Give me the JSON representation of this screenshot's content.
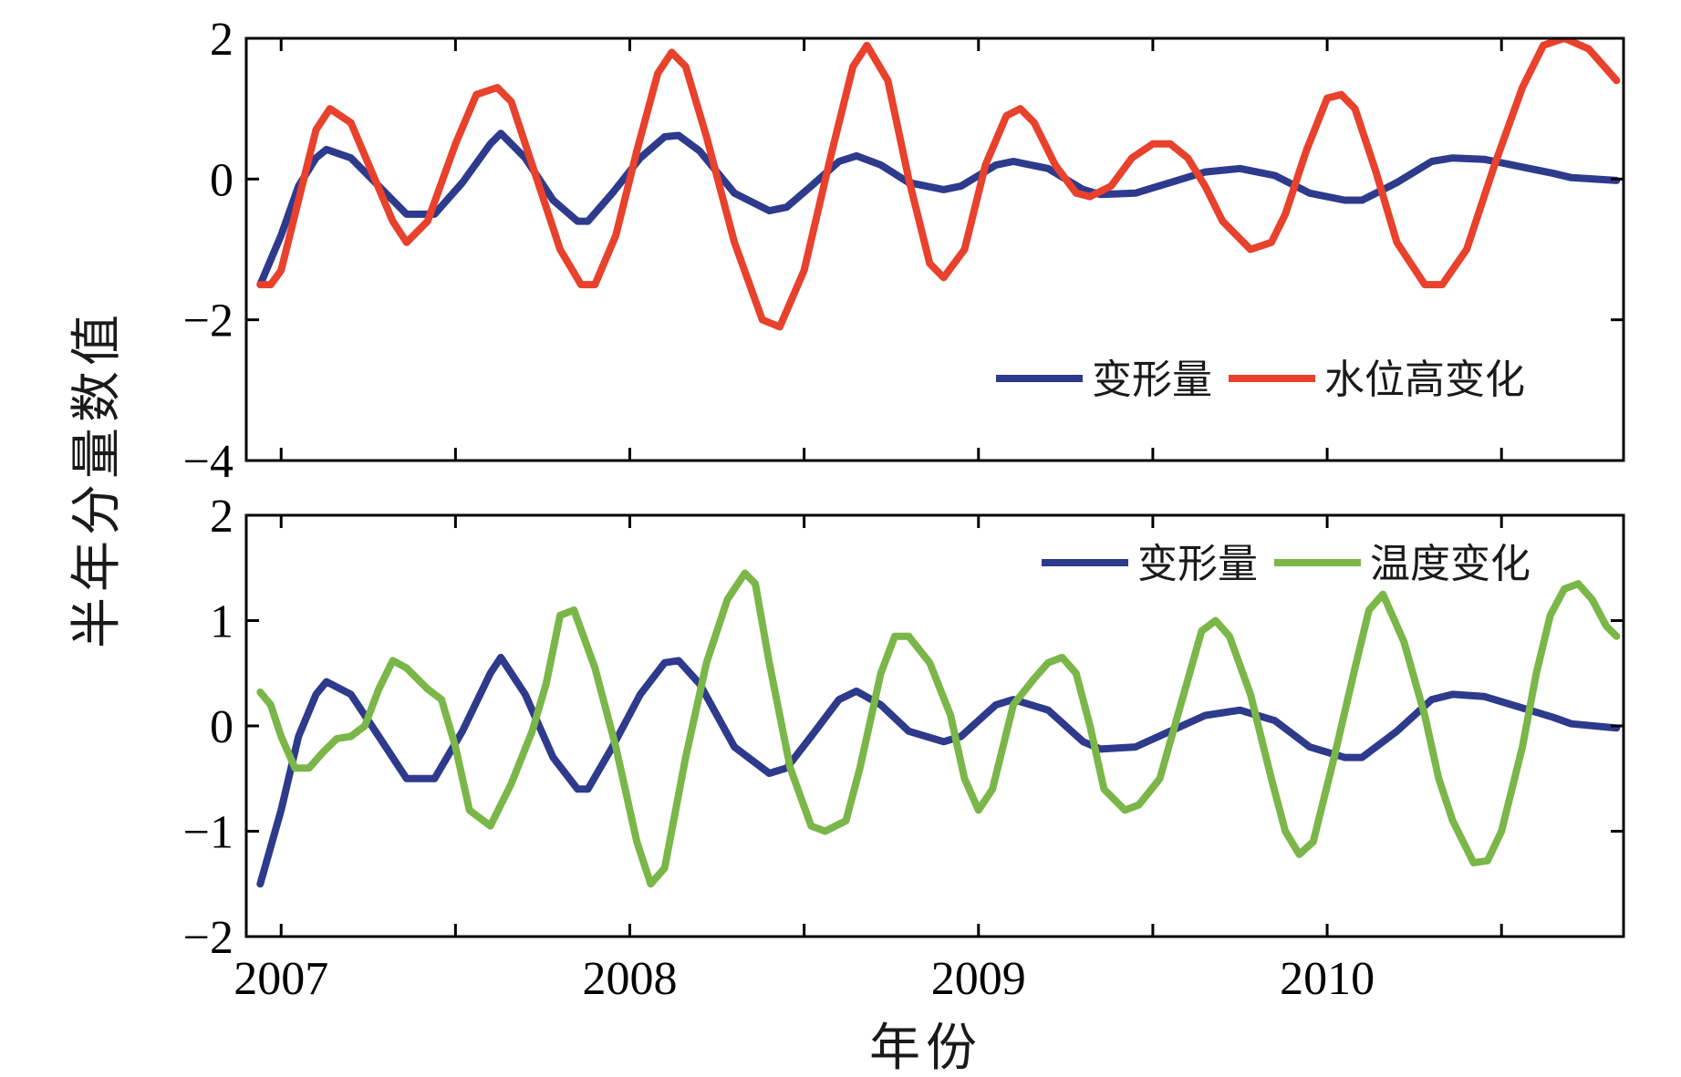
{
  "colors": {
    "deformation": "#2e3a8c",
    "water": "#e8412c",
    "temperature": "#7ab648"
  },
  "labels": {
    "ylabel": "半年分量数值",
    "xlabel": "年份"
  },
  "chart_data": [
    {
      "type": "line",
      "panel": "top",
      "title": "",
      "xlabel": "年份",
      "ylabel": "半年分量数值",
      "xlim": [
        2006.9,
        2010.85
      ],
      "ylim": [
        -4,
        2
      ],
      "yticks": [
        2,
        0,
        -2,
        -4
      ],
      "ytick_labels": [
        "2",
        "0",
        "−2",
        "−4"
      ],
      "legend": "bottom-right",
      "series": [
        {
          "name": "变形量",
          "color": "#2e3a8c",
          "x": [
            2006.94,
            2007.0,
            2007.05,
            2007.1,
            2007.13,
            2007.2,
            2007.28,
            2007.36,
            2007.44,
            2007.52,
            2007.6,
            2007.63,
            2007.7,
            2007.78,
            2007.85,
            2007.88,
            2007.95,
            2008.03,
            2008.1,
            2008.14,
            2008.2,
            2008.3,
            2008.4,
            2008.45,
            2008.52,
            2008.6,
            2008.65,
            2008.72,
            2008.8,
            2008.9,
            2008.95,
            2009.05,
            2009.1,
            2009.2,
            2009.3,
            2009.35,
            2009.45,
            2009.55,
            2009.65,
            2009.75,
            2009.85,
            2009.95,
            2010.05,
            2010.1,
            2010.2,
            2010.3,
            2010.36,
            2010.45,
            2010.55,
            2010.65,
            2010.7,
            2010.83
          ],
          "y": [
            -1.5,
            -0.8,
            -0.1,
            0.3,
            0.42,
            0.3,
            -0.1,
            -0.5,
            -0.5,
            -0.05,
            0.5,
            0.65,
            0.3,
            -0.3,
            -0.6,
            -0.6,
            -0.2,
            0.3,
            0.6,
            0.62,
            0.4,
            -0.2,
            -0.45,
            -0.4,
            -0.1,
            0.25,
            0.33,
            0.2,
            -0.05,
            -0.15,
            -0.1,
            0.2,
            0.25,
            0.15,
            -0.15,
            -0.22,
            -0.2,
            -0.05,
            0.1,
            0.15,
            0.05,
            -0.2,
            -0.3,
            -0.3,
            -0.05,
            0.25,
            0.3,
            0.28,
            0.18,
            0.08,
            0.02,
            -0.02
          ]
        },
        {
          "name": "水位高变化",
          "color": "#e8412c",
          "x": [
            2006.94,
            2006.97,
            2007.0,
            2007.05,
            2007.1,
            2007.14,
            2007.2,
            2007.26,
            2007.32,
            2007.36,
            2007.42,
            2007.5,
            2007.56,
            2007.62,
            2007.66,
            2007.72,
            2007.8,
            2007.86,
            2007.9,
            2007.96,
            2008.02,
            2008.08,
            2008.12,
            2008.16,
            2008.22,
            2008.3,
            2008.38,
            2008.43,
            2008.5,
            2008.58,
            2008.64,
            2008.68,
            2008.74,
            2008.8,
            2008.86,
            2008.9,
            2008.96,
            2009.02,
            2009.08,
            2009.12,
            2009.16,
            2009.22,
            2009.28,
            2009.32,
            2009.38,
            2009.44,
            2009.5,
            2009.55,
            2009.6,
            2009.65,
            2009.7,
            2009.78,
            2009.84,
            2009.88,
            2009.94,
            2010.0,
            2010.04,
            2010.08,
            2010.14,
            2010.2,
            2010.28,
            2010.33,
            2010.4,
            2010.48,
            2010.56,
            2010.62,
            2010.68,
            2010.75,
            2010.83
          ],
          "y": [
            -1.5,
            -1.5,
            -1.3,
            -0.3,
            0.7,
            1.0,
            0.8,
            0.1,
            -0.6,
            -0.9,
            -0.6,
            0.5,
            1.2,
            1.3,
            1.1,
            0.2,
            -1.0,
            -1.5,
            -1.5,
            -0.8,
            0.4,
            1.5,
            1.8,
            1.6,
            0.6,
            -0.9,
            -2.0,
            -2.1,
            -1.3,
            0.4,
            1.6,
            1.9,
            1.4,
            0.0,
            -1.2,
            -1.4,
            -1.0,
            0.2,
            0.9,
            1.0,
            0.8,
            0.2,
            -0.2,
            -0.25,
            -0.1,
            0.3,
            0.5,
            0.5,
            0.3,
            -0.1,
            -0.6,
            -1.0,
            -0.9,
            -0.5,
            0.4,
            1.15,
            1.2,
            1.0,
            0.1,
            -0.9,
            -1.5,
            -1.5,
            -1.0,
            0.2,
            1.3,
            1.9,
            2.0,
            1.85,
            1.4
          ]
        }
      ]
    },
    {
      "type": "line",
      "panel": "bottom",
      "title": "",
      "xlabel": "年份",
      "ylabel": "半年分量数值",
      "xlim": [
        2006.9,
        2010.85
      ],
      "ylim": [
        -2,
        2
      ],
      "yticks": [
        2,
        1,
        0,
        -1,
        -2
      ],
      "ytick_labels": [
        "2",
        "1",
        "0",
        "−1",
        "−2"
      ],
      "xticks": [
        2007,
        2008,
        2009,
        2010
      ],
      "xtick_labels": [
        "2007",
        "2008",
        "2009",
        "2010"
      ],
      "legend": "top-right",
      "series": [
        {
          "name": "变形量",
          "color": "#2e3a8c",
          "x": [
            2006.94,
            2007.0,
            2007.05,
            2007.1,
            2007.13,
            2007.2,
            2007.28,
            2007.36,
            2007.44,
            2007.52,
            2007.6,
            2007.63,
            2007.7,
            2007.78,
            2007.85,
            2007.88,
            2007.95,
            2008.03,
            2008.1,
            2008.14,
            2008.2,
            2008.3,
            2008.4,
            2008.45,
            2008.52,
            2008.6,
            2008.65,
            2008.72,
            2008.8,
            2008.9,
            2008.95,
            2009.05,
            2009.1,
            2009.2,
            2009.3,
            2009.35,
            2009.45,
            2009.55,
            2009.65,
            2009.75,
            2009.85,
            2009.95,
            2010.05,
            2010.1,
            2010.2,
            2010.3,
            2010.36,
            2010.45,
            2010.55,
            2010.65,
            2010.7,
            2010.83
          ],
          "y": [
            -1.5,
            -0.8,
            -0.1,
            0.3,
            0.42,
            0.3,
            -0.1,
            -0.5,
            -0.5,
            -0.05,
            0.5,
            0.65,
            0.3,
            -0.3,
            -0.6,
            -0.6,
            -0.2,
            0.3,
            0.6,
            0.62,
            0.4,
            -0.2,
            -0.45,
            -0.4,
            -0.1,
            0.25,
            0.33,
            0.2,
            -0.05,
            -0.15,
            -0.1,
            0.2,
            0.25,
            0.15,
            -0.15,
            -0.22,
            -0.2,
            -0.05,
            0.1,
            0.15,
            0.05,
            -0.2,
            -0.3,
            -0.3,
            -0.05,
            0.25,
            0.3,
            0.28,
            0.18,
            0.08,
            0.02,
            -0.02
          ]
        },
        {
          "name": "温度变化",
          "color": "#7ab648",
          "x": [
            2006.94,
            2006.97,
            2007.0,
            2007.04,
            2007.08,
            2007.12,
            2007.16,
            2007.2,
            2007.24,
            2007.28,
            2007.32,
            2007.36,
            2007.42,
            2007.46,
            2007.5,
            2007.54,
            2007.6,
            2007.66,
            2007.72,
            2007.76,
            2007.8,
            2007.84,
            2007.9,
            2007.96,
            2008.02,
            2008.06,
            2008.1,
            2008.16,
            2008.22,
            2008.28,
            2008.33,
            2008.36,
            2008.4,
            2008.46,
            2008.52,
            2008.56,
            2008.62,
            2008.66,
            2008.72,
            2008.76,
            2008.8,
            2008.86,
            2008.92,
            2008.96,
            2009.0,
            2009.04,
            2009.1,
            2009.16,
            2009.2,
            2009.24,
            2009.28,
            2009.32,
            2009.36,
            2009.42,
            2009.46,
            2009.52,
            2009.58,
            2009.64,
            2009.68,
            2009.72,
            2009.78,
            2009.84,
            2009.88,
            2009.92,
            2009.96,
            2010.02,
            2010.08,
            2010.12,
            2010.16,
            2010.22,
            2010.28,
            2010.32,
            2010.36,
            2010.42,
            2010.46,
            2010.5,
            2010.56,
            2010.6,
            2010.64,
            2010.68,
            2010.72,
            2010.76,
            2010.8,
            2010.83
          ],
          "y": [
            0.32,
            0.2,
            -0.1,
            -0.4,
            -0.4,
            -0.25,
            -0.12,
            -0.1,
            0.0,
            0.35,
            0.62,
            0.55,
            0.35,
            0.25,
            -0.2,
            -0.8,
            -0.95,
            -0.55,
            -0.05,
            0.4,
            1.05,
            1.1,
            0.55,
            -0.2,
            -1.1,
            -1.5,
            -1.35,
            -0.3,
            0.6,
            1.2,
            1.45,
            1.35,
            0.6,
            -0.4,
            -0.95,
            -1.0,
            -0.9,
            -0.4,
            0.5,
            0.85,
            0.85,
            0.6,
            0.1,
            -0.5,
            -0.8,
            -0.6,
            0.2,
            0.45,
            0.6,
            0.65,
            0.5,
            0.0,
            -0.6,
            -0.8,
            -0.75,
            -0.5,
            0.2,
            0.9,
            1.0,
            0.85,
            0.3,
            -0.5,
            -1.0,
            -1.22,
            -1.1,
            -0.3,
            0.55,
            1.1,
            1.25,
            0.8,
            0.1,
            -0.5,
            -0.9,
            -1.3,
            -1.28,
            -1.0,
            -0.2,
            0.5,
            1.05,
            1.3,
            1.35,
            1.2,
            0.95,
            0.85
          ]
        }
      ]
    }
  ]
}
